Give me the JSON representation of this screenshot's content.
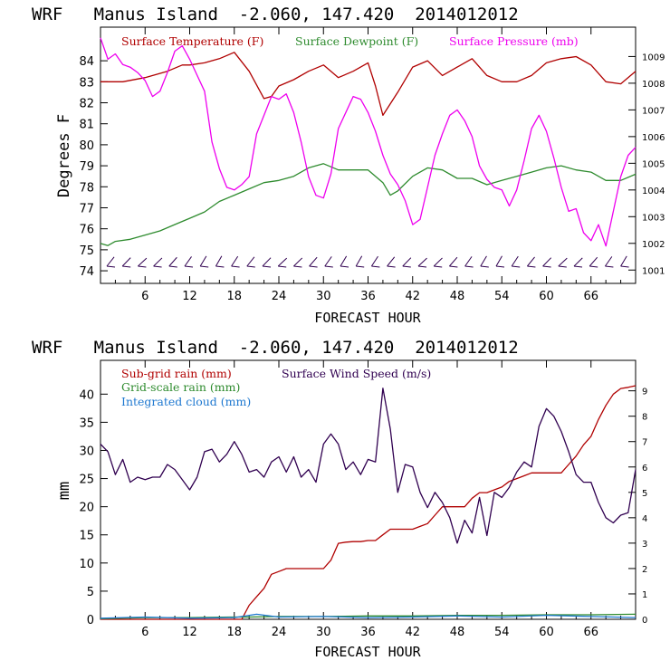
{
  "chart_data": [
    {
      "type": "line",
      "title": "WRF   Manus Island  -2.060, 147.420  2014012012",
      "xlabel": "FORECAST HOUR",
      "ylabel": "Degrees F",
      "xlim": [
        0,
        72
      ],
      "ylim": [
        73.4,
        85.6
      ],
      "y2lim": [
        1000.5,
        1010.1
      ],
      "xticks": [
        "6",
        "12",
        "18",
        "24",
        "30",
        "36",
        "42",
        "48",
        "54",
        "60",
        "66"
      ],
      "yticks": [
        "74",
        "75",
        "76",
        "77",
        "78",
        "79",
        "80",
        "81",
        "82",
        "83",
        "84"
      ],
      "y2ticks": [
        "1001",
        "1002",
        "1003",
        "1004",
        "1005",
        "1006",
        "1007",
        "1008",
        "1009"
      ],
      "series": [
        {
          "name": "Surface Temperature (F)",
          "color": "#b00000",
          "axis": "left",
          "x": [
            0,
            3,
            6,
            9,
            11,
            12,
            14,
            16,
            18,
            20,
            22,
            23,
            24,
            26,
            28,
            30,
            32,
            34,
            36,
            37,
            38,
            40,
            42,
            44,
            46,
            48,
            50,
            52,
            54,
            56,
            58,
            60,
            62,
            64,
            66,
            68,
            70,
            72
          ],
          "values": [
            83.0,
            83.0,
            83.2,
            83.5,
            83.8,
            83.8,
            83.9,
            84.1,
            84.4,
            83.5,
            82.2,
            82.3,
            82.8,
            83.1,
            83.5,
            83.8,
            83.2,
            83.5,
            83.9,
            82.8,
            81.4,
            82.5,
            83.7,
            84.0,
            83.3,
            83.7,
            84.1,
            83.3,
            83.0,
            83.0,
            83.3,
            83.9,
            84.1,
            84.2,
            83.8,
            83.0,
            82.9,
            83.5
          ]
        },
        {
          "name": "Surface Dewpoint (F)",
          "color": "#2e8b2e",
          "axis": "left",
          "x": [
            0,
            1,
            2,
            4,
            6,
            8,
            10,
            12,
            14,
            16,
            18,
            20,
            22,
            24,
            26,
            28,
            30,
            32,
            34,
            36,
            38,
            39,
            40,
            42,
            44,
            46,
            48,
            50,
            52,
            54,
            56,
            58,
            60,
            62,
            64,
            66,
            68,
            70,
            72
          ],
          "values": [
            75.3,
            75.2,
            75.4,
            75.5,
            75.7,
            75.9,
            76.2,
            76.5,
            76.8,
            77.3,
            77.6,
            77.9,
            78.2,
            78.3,
            78.5,
            78.9,
            79.1,
            78.8,
            78.8,
            78.8,
            78.2,
            77.6,
            77.8,
            78.5,
            78.9,
            78.8,
            78.4,
            78.4,
            78.1,
            78.3,
            78.5,
            78.7,
            78.9,
            79.0,
            78.8,
            78.7,
            78.3,
            78.3,
            78.6
          ]
        },
        {
          "name": "Surface Pressure (mb)",
          "color": "#ee00ee",
          "axis": "right",
          "x": [
            0,
            1,
            2,
            3,
            4,
            5,
            6,
            7,
            8,
            9,
            10,
            11,
            12,
            13,
            14,
            15,
            16,
            17,
            18,
            19,
            20,
            21,
            22,
            23,
            24,
            25,
            26,
            27,
            28,
            29,
            30,
            31,
            32,
            33,
            34,
            35,
            36,
            37,
            38,
            39,
            40,
            41,
            42,
            43,
            44,
            45,
            46,
            47,
            48,
            49,
            50,
            51,
            52,
            53,
            54,
            55,
            56,
            57,
            58,
            59,
            60,
            61,
            62,
            63,
            64,
            65,
            66,
            67,
            68,
            69,
            70,
            71,
            72
          ],
          "values": [
            1009.7,
            1008.9,
            1009.1,
            1008.7,
            1008.6,
            1008.4,
            1008.1,
            1007.5,
            1007.7,
            1008.4,
            1009.2,
            1009.4,
            1008.9,
            1008.3,
            1007.7,
            1005.8,
            1004.8,
            1004.1,
            1004.0,
            1004.2,
            1004.5,
            1006.1,
            1006.8,
            1007.5,
            1007.4,
            1007.6,
            1006.9,
            1005.8,
            1004.5,
            1003.8,
            1003.7,
            1004.6,
            1006.3,
            1006.9,
            1007.5,
            1007.4,
            1006.9,
            1006.2,
            1005.3,
            1004.6,
            1004.2,
            1003.6,
            1002.7,
            1002.9,
            1004.1,
            1005.3,
            1006.1,
            1006.8,
            1007.0,
            1006.6,
            1006.0,
            1004.9,
            1004.4,
            1004.1,
            1004.0,
            1003.4,
            1004.0,
            1005.1,
            1006.3,
            1006.8,
            1006.2,
            1005.2,
            1004.1,
            1003.2,
            1003.3,
            1002.4,
            1002.1,
            1002.7,
            1001.9,
            1003.2,
            1004.5,
            1005.3,
            1005.6
          ]
        }
      ]
    },
    {
      "type": "line",
      "title": "WRF   Manus Island  -2.060, 147.420  2014012012",
      "xlabel": "FORECAST HOUR",
      "ylabel": "mm",
      "xlim": [
        0,
        72
      ],
      "ylim": [
        0,
        46
      ],
      "y2lim": [
        0,
        10.2
      ],
      "xticks": [
        "6",
        "12",
        "18",
        "24",
        "30",
        "36",
        "42",
        "48",
        "54",
        "60",
        "66"
      ],
      "yticks": [
        "0",
        "5",
        "10",
        "15",
        "20",
        "25",
        "30",
        "35",
        "40"
      ],
      "y2ticks": [
        "0",
        "1",
        "2",
        "3",
        "4",
        "5",
        "6",
        "7",
        "8",
        "9"
      ],
      "series": [
        {
          "name": "Sub-grid rain (mm)",
          "color": "#b00000",
          "axis": "left",
          "x": [
            0,
            19,
            20,
            21,
            22,
            23,
            24,
            25,
            26,
            27,
            28,
            29,
            30,
            31,
            32,
            33,
            34,
            35,
            36,
            37,
            38,
            39,
            40,
            41,
            42,
            43,
            44,
            45,
            46,
            47,
            48,
            49,
            50,
            51,
            52,
            53,
            54,
            55,
            56,
            57,
            58,
            59,
            60,
            61,
            62,
            63,
            64,
            65,
            66,
            67,
            68,
            69,
            70,
            71,
            72
          ],
          "values": [
            0,
            0,
            2.5,
            4.0,
            5.5,
            8.0,
            8.5,
            9.0,
            9.0,
            9.0,
            9.0,
            9.0,
            9.0,
            10.5,
            13.5,
            13.7,
            13.8,
            13.8,
            14.0,
            14.0,
            15.0,
            16.0,
            16.0,
            16.0,
            16.0,
            16.5,
            17.0,
            18.5,
            20.0,
            20.0,
            20.0,
            20.0,
            21.5,
            22.5,
            22.5,
            23.0,
            23.5,
            24.5,
            25.0,
            25.5,
            26.0,
            26.0,
            26.0,
            26.0,
            26.0,
            27.5,
            29.0,
            31.0,
            32.5,
            35.5,
            38.0,
            40.0,
            41.0,
            41.2,
            41.5
          ]
        },
        {
          "name": "Grid-scale rain (mm)",
          "color": "#2e8b2e",
          "axis": "left",
          "x": [
            0,
            6,
            12,
            18,
            20,
            24,
            30,
            36,
            42,
            48,
            54,
            60,
            66,
            72
          ],
          "values": [
            0.1,
            0.3,
            0.3,
            0.4,
            0.4,
            0.5,
            0.5,
            0.6,
            0.6,
            0.7,
            0.7,
            0.8,
            0.8,
            0.9
          ]
        },
        {
          "name": "Integrated cloud (mm)",
          "color": "#1e78d0",
          "axis": "left",
          "x": [
            0,
            6,
            12,
            18,
            21,
            24,
            30,
            36,
            42,
            48,
            54,
            60,
            66,
            72
          ],
          "values": [
            0.2,
            0.4,
            0.2,
            0.3,
            0.9,
            0.4,
            0.5,
            0.3,
            0.4,
            0.6,
            0.4,
            0.7,
            0.5,
            0.3
          ]
        },
        {
          "name": "Surface Wind Speed (m/s)",
          "color": "#300050",
          "axis": "right",
          "x": [
            0,
            1,
            2,
            3,
            4,
            5,
            6,
            7,
            8,
            9,
            10,
            11,
            12,
            13,
            14,
            15,
            16,
            17,
            18,
            19,
            20,
            21,
            22,
            23,
            24,
            25,
            26,
            27,
            28,
            29,
            30,
            31,
            32,
            33,
            34,
            35,
            36,
            37,
            38,
            39,
            40,
            41,
            42,
            43,
            44,
            45,
            46,
            47,
            48,
            49,
            50,
            51,
            52,
            53,
            54,
            55,
            56,
            57,
            58,
            59,
            60,
            61,
            62,
            63,
            64,
            65,
            66,
            67,
            68,
            69,
            70,
            71,
            72
          ],
          "values": [
            6.9,
            6.6,
            5.7,
            6.3,
            5.4,
            5.6,
            5.5,
            5.6,
            5.6,
            6.1,
            5.9,
            5.5,
            5.1,
            5.6,
            6.6,
            6.7,
            6.2,
            6.5,
            7.0,
            6.5,
            5.8,
            5.9,
            5.6,
            6.2,
            6.4,
            5.8,
            6.4,
            5.6,
            5.9,
            5.4,
            6.9,
            7.3,
            6.9,
            5.9,
            6.2,
            5.7,
            6.3,
            6.2,
            9.1,
            7.5,
            5.0,
            6.1,
            6.0,
            5.0,
            4.4,
            5.0,
            4.6,
            4.0,
            3.0,
            3.9,
            3.4,
            4.8,
            3.3,
            5.0,
            4.8,
            5.2,
            5.8,
            6.2,
            6.0,
            7.6,
            8.3,
            8.0,
            7.4,
            6.6,
            5.7,
            5.4,
            5.4,
            4.6,
            4.0,
            3.8,
            4.1,
            4.2,
            5.9
          ]
        }
      ]
    }
  ]
}
